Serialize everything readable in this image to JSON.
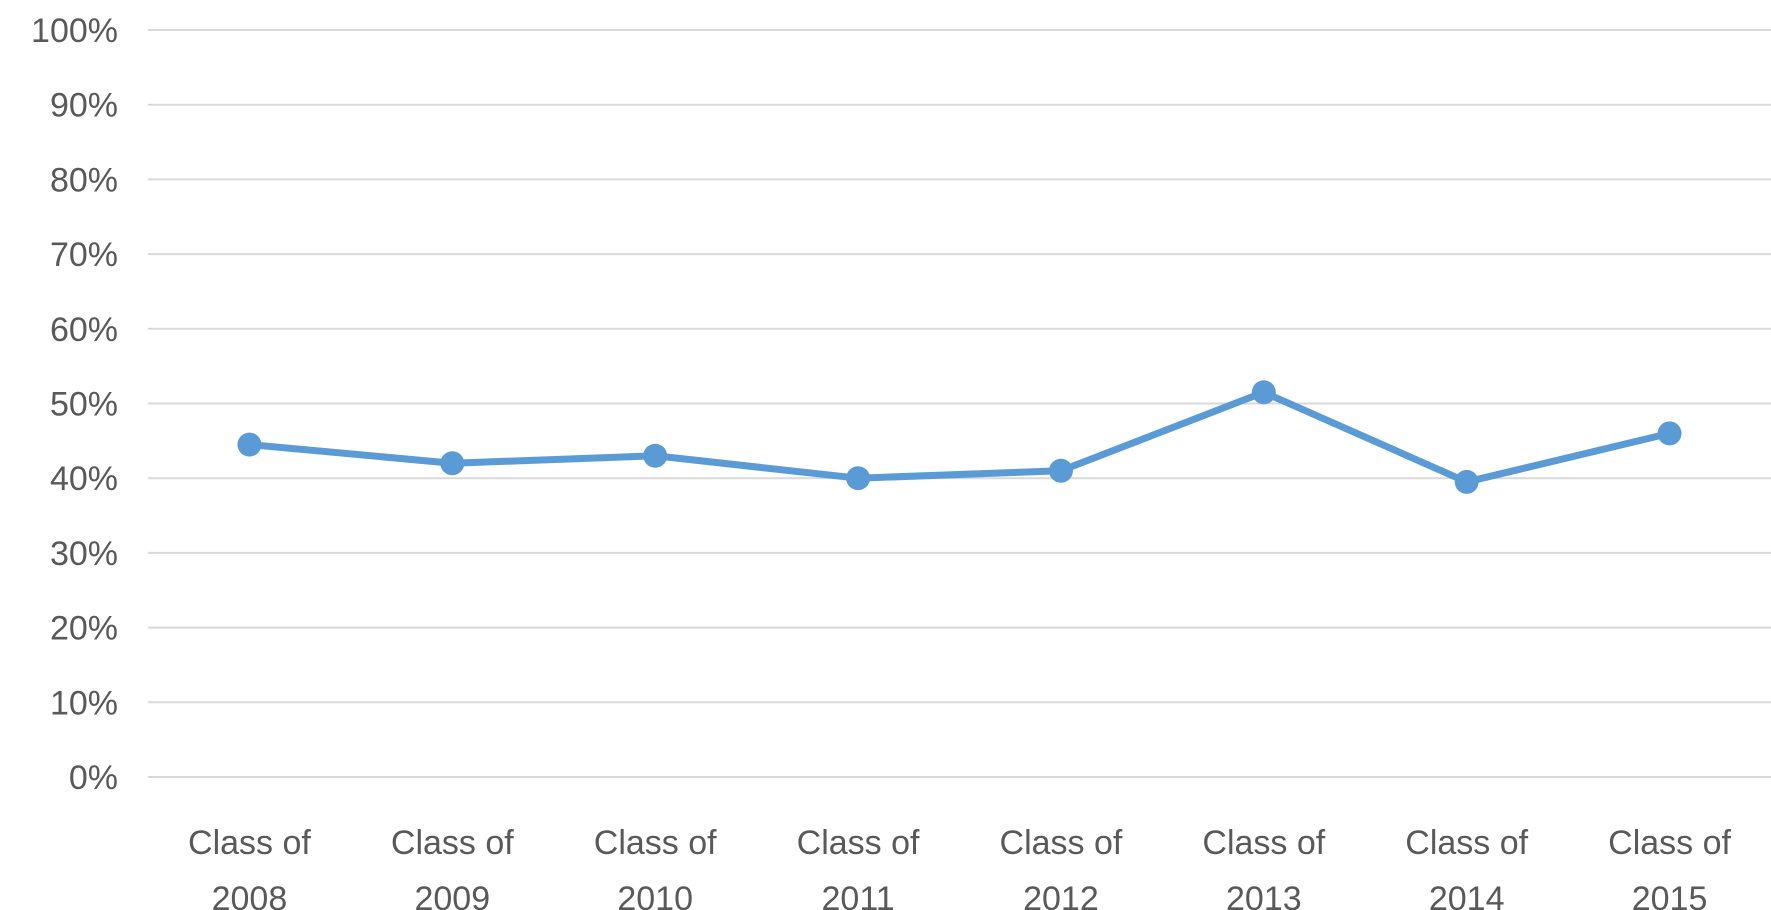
{
  "chart_data": {
    "type": "line",
    "categories": [
      [
        "Class of",
        "2008"
      ],
      [
        "Class of",
        "2009"
      ],
      [
        "Class of",
        "2010"
      ],
      [
        "Class of",
        "2011"
      ],
      [
        "Class of",
        "2012"
      ],
      [
        "Class of",
        "2013"
      ],
      [
        "Class of",
        "2014"
      ],
      [
        "Class of",
        "2015"
      ]
    ],
    "series": [
      {
        "values": [
          44.5,
          42,
          43,
          40,
          41,
          51.5,
          39.5,
          46
        ],
        "color": "#5b9bd5"
      }
    ],
    "ylim": [
      0,
      100
    ],
    "y_ticks": [
      "0%",
      "10%",
      "20%",
      "30%",
      "40%",
      "50%",
      "60%",
      "70%",
      "80%",
      "90%",
      "100%"
    ],
    "title": "",
    "xlabel": "",
    "ylabel": "",
    "grid": true,
    "gridline_color": "#d9d9d9"
  }
}
